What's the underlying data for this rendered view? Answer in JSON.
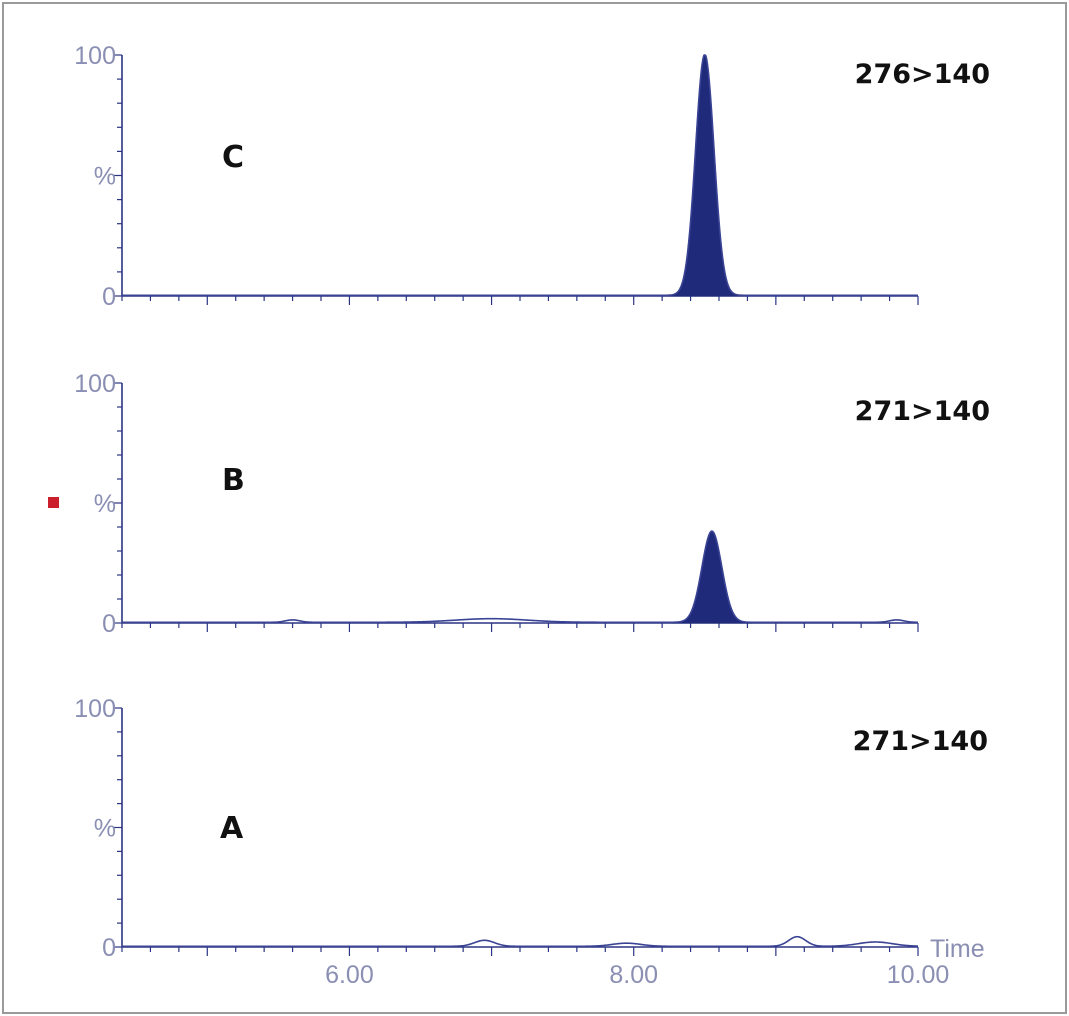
{
  "chart_data": [
    {
      "type": "line",
      "panel_label": "C",
      "transition": "276>140",
      "x_range": [
        4.4,
        10.0
      ],
      "ylim": [
        0,
        100
      ],
      "y_tick_labels": [
        "100",
        "%",
        "0"
      ],
      "peaks": [
        {
          "center": 8.5,
          "sigma": 0.065,
          "height": 100,
          "filled": true
        }
      ],
      "baseline_bumps": []
    },
    {
      "type": "line",
      "panel_label": "B",
      "transition": "271>140",
      "x_range": [
        4.4,
        10.0
      ],
      "ylim": [
        0,
        100
      ],
      "y_tick_labels": [
        "100",
        "%",
        "0"
      ],
      "peaks": [
        {
          "center": 8.55,
          "sigma": 0.07,
          "height": 38,
          "filled": true
        }
      ],
      "baseline_bumps": [
        {
          "center": 5.6,
          "sigma": 0.05,
          "height": 1
        },
        {
          "center": 7.0,
          "sigma": 0.25,
          "height": 1.5
        },
        {
          "center": 9.85,
          "sigma": 0.05,
          "height": 1
        }
      ]
    },
    {
      "type": "line",
      "panel_label": "A",
      "transition": "271>140",
      "x_range": [
        4.4,
        10.0
      ],
      "ylim": [
        0,
        100
      ],
      "y_tick_labels": [
        "100",
        "%",
        "0"
      ],
      "x_tick_labels": [
        {
          "value": 6.0,
          "label": "6.00"
        },
        {
          "value": 8.0,
          "label": "8.00"
        },
        {
          "value": 10.0,
          "label": "10.00"
        }
      ],
      "x_axis_label": "Time",
      "peaks": [],
      "baseline_bumps": [
        {
          "center": 6.95,
          "sigma": 0.07,
          "height": 2.5
        },
        {
          "center": 7.95,
          "sigma": 0.1,
          "height": 1.3
        },
        {
          "center": 9.15,
          "sigma": 0.06,
          "height": 4
        },
        {
          "center": 9.7,
          "sigma": 0.12,
          "height": 1.8
        }
      ]
    }
  ],
  "colors": {
    "axis": "#2b3483",
    "peak_fill": "#1f2a7a",
    "trace": "#3a4394",
    "tick_label": "#8a8fb3",
    "marker": "#cc1f2e"
  }
}
